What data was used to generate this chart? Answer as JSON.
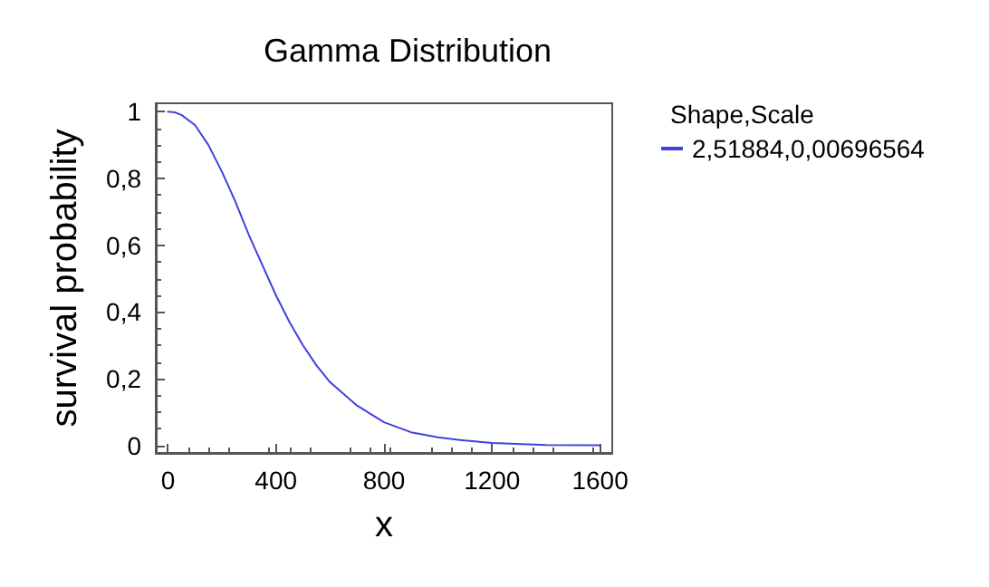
{
  "chart_data": {
    "type": "line",
    "title": "Gamma Distribution",
    "xlabel": "x",
    "ylabel": "survival probability",
    "legend_title": "Shape,Scale",
    "x": [
      0,
      25,
      50,
      100,
      150,
      200,
      250,
      300,
      350,
      400,
      450,
      500,
      550,
      600,
      700,
      800,
      900,
      1000,
      1100,
      1200,
      1400,
      1600
    ],
    "series": [
      {
        "name": "2,51884,0,00696564",
        "color": "#4040e0",
        "values": [
          1,
          0.998,
          0.99,
          0.96,
          0.9,
          0.82,
          0.73,
          0.63,
          0.54,
          0.45,
          0.37,
          0.3,
          0.24,
          0.19,
          0.12,
          0.07,
          0.04,
          0.025,
          0.015,
          0.008,
          0.002,
          0.001
        ]
      }
    ],
    "xlim": [
      -45,
      1645
    ],
    "ylim": [
      -0.022,
      1.025
    ],
    "xticks": [
      0,
      400,
      800,
      1200,
      1600
    ],
    "yticks": [
      0,
      {
        "value": 0.2,
        "label": "0,2"
      },
      {
        "value": 0.4,
        "label": "0,4"
      },
      {
        "value": 0.6,
        "label": "0,6"
      },
      {
        "value": 0.8,
        "label": "0,8"
      },
      1
    ],
    "legend": "top right",
    "grid": false,
    "marker": "none",
    "line_style": "solid"
  }
}
